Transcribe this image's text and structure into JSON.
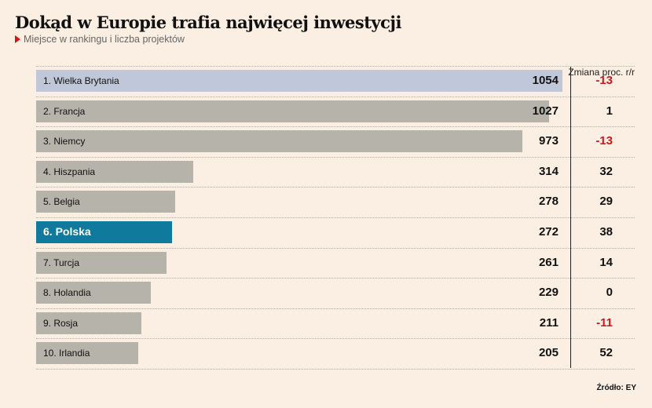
{
  "chart_data": {
    "type": "bar",
    "title": "Dokąd w Europie trafia najwięcej inwestycji",
    "subtitle": "Miejsce w rankingu i liczba projektów",
    "change_header": "Zmiana proc. r/r",
    "source": "Źródło: EY",
    "categories": [
      "1. Wielka Brytania",
      "2. Francja",
      "3. Niemcy",
      "4. Hiszpania",
      "5. Belgia",
      "6. Polska",
      "7. Turcja",
      "8. Holandia",
      "9. Rosja",
      "10. Irlandia"
    ],
    "values": [
      1054,
      1027,
      973,
      314,
      278,
      272,
      261,
      229,
      211,
      205
    ],
    "changes": [
      "-13",
      "1",
      "-13",
      "32",
      "29",
      "38",
      "14",
      "0",
      "-11",
      "52"
    ],
    "highlight": "6. Polska",
    "colors": {
      "default": "#b5b3aa",
      "first": "#c0c7d8",
      "highlight": "#0f7a9c",
      "negative": "#d0161a"
    }
  }
}
